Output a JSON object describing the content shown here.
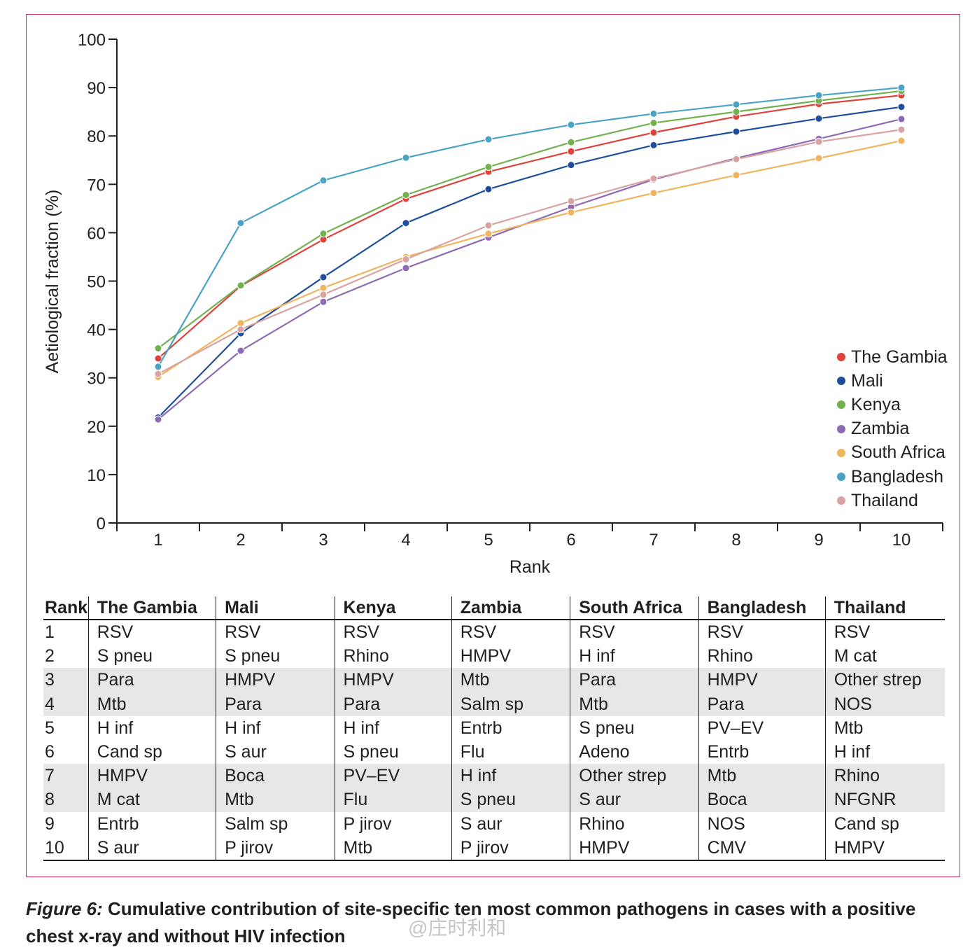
{
  "chart_data": {
    "type": "line",
    "ylabel": "Aetiological fraction (%)",
    "xlabel": "Rank",
    "x": [
      1,
      2,
      3,
      4,
      5,
      6,
      7,
      8,
      9,
      10
    ],
    "ylim": [
      0,
      100
    ],
    "yticks": [
      0,
      10,
      20,
      30,
      40,
      50,
      60,
      70,
      80,
      90,
      100
    ],
    "legend_position": "right",
    "series": [
      {
        "name": "The Gambia",
        "color": "#e0413a",
        "values": [
          34.0,
          49.0,
          58.6,
          67.0,
          72.6,
          76.8,
          80.7,
          84.0,
          86.6,
          88.4
        ]
      },
      {
        "name": "Mali",
        "color": "#1f4f9c",
        "values": [
          21.8,
          39.2,
          50.8,
          62.0,
          69.0,
          74.0,
          78.1,
          80.9,
          83.6,
          86.0
        ]
      },
      {
        "name": "Kenya",
        "color": "#72b14f",
        "values": [
          36.1,
          49.1,
          59.8,
          67.8,
          73.6,
          78.7,
          82.7,
          85.0,
          87.3,
          89.3
        ]
      },
      {
        "name": "Zambia",
        "color": "#8d6bb4",
        "values": [
          21.4,
          35.6,
          45.7,
          52.7,
          59.0,
          65.3,
          71.0,
          75.4,
          79.4,
          83.5
        ]
      },
      {
        "name": "South Africa",
        "color": "#f0b45e",
        "values": [
          30.2,
          41.3,
          48.6,
          55.0,
          59.8,
          64.2,
          68.2,
          71.9,
          75.4,
          79.0
        ]
      },
      {
        "name": "Bangladesh",
        "color": "#4aa3c4",
        "values": [
          32.3,
          62.0,
          70.8,
          75.5,
          79.3,
          82.3,
          84.6,
          86.5,
          88.4,
          90.0
        ]
      },
      {
        "name": "Thailand",
        "color": "#d9a3a2",
        "values": [
          30.8,
          40.0,
          47.2,
          54.5,
          61.5,
          66.5,
          71.2,
          75.2,
          78.8,
          81.3
        ]
      }
    ]
  },
  "table": {
    "headers": [
      "Rank",
      "The Gambia",
      "Mali",
      "Kenya",
      "Zambia",
      "South Africa",
      "Bangladesh",
      "Thailand"
    ],
    "rows": [
      [
        "1",
        "RSV",
        "RSV",
        "RSV",
        "RSV",
        "RSV",
        "RSV",
        "RSV"
      ],
      [
        "2",
        "S pneu",
        "S pneu",
        "Rhino",
        "HMPV",
        "H inf",
        "Rhino",
        "M cat"
      ],
      [
        "3",
        "Para",
        "HMPV",
        "HMPV",
        "Mtb",
        "Para",
        "HMPV",
        "Other strep"
      ],
      [
        "4",
        "Mtb",
        "Para",
        "Para",
        "Salm sp",
        "Mtb",
        "Para",
        "NOS"
      ],
      [
        "5",
        "H inf",
        "H inf",
        "H inf",
        "Entrb",
        "S pneu",
        "PV–EV",
        "Mtb"
      ],
      [
        "6",
        "Cand sp",
        "S aur",
        "S pneu",
        "Flu",
        "Adeno",
        "Entrb",
        "H inf"
      ],
      [
        "7",
        "HMPV",
        "Boca",
        "PV–EV",
        "H inf",
        "Other strep",
        "Mtb",
        "Rhino"
      ],
      [
        "8",
        "M cat",
        "Mtb",
        "Flu",
        "S pneu",
        "S aur",
        "Boca",
        "NFGNR"
      ],
      [
        "9",
        "Entrb",
        "Salm sp",
        "P jirov",
        "S aur",
        "Rhino",
        "NOS",
        "Cand sp"
      ],
      [
        "10",
        "S aur",
        "P jirov",
        "Mtb",
        "P jirov",
        "HMPV",
        "CMV",
        "HMPV"
      ]
    ]
  },
  "caption": {
    "label": "Figure 6:",
    "text": " Cumulative contribution of site-specific ten most common pathogens in cases with a positive chest x-ray and without HIV infection"
  },
  "watermark": "@庄时利和"
}
